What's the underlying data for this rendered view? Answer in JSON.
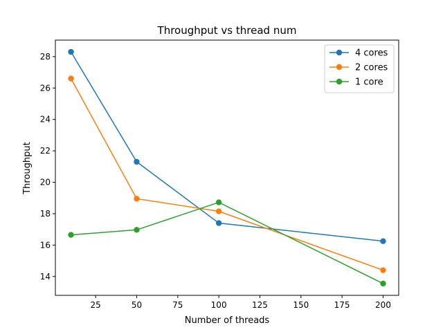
{
  "chart_data": {
    "type": "line",
    "title": "Throughput vs thread num",
    "xlabel": "Number of threads",
    "ylabel": "Throughput",
    "x": [
      10,
      50,
      100,
      200
    ],
    "series": [
      {
        "name": "4 cores",
        "color": "#1f77b4",
        "values": [
          28.3,
          21.3,
          17.4,
          16.25
        ]
      },
      {
        "name": "2 cores",
        "color": "#ff7f0e",
        "values": [
          26.6,
          18.95,
          18.15,
          14.4
        ]
      },
      {
        "name": "1 core",
        "color": "#2ca02c",
        "values": [
          16.65,
          16.97,
          18.72,
          13.55
        ]
      }
    ],
    "xlim": [
      0.5,
      209.5
    ],
    "ylim": [
      12.8,
      29.05
    ],
    "xticks": [
      25,
      50,
      75,
      100,
      125,
      150,
      175,
      200
    ],
    "yticks": [
      14,
      16,
      18,
      20,
      22,
      24,
      26,
      28
    ],
    "grid": false,
    "legend_position": "top-right",
    "marker": "circle"
  }
}
